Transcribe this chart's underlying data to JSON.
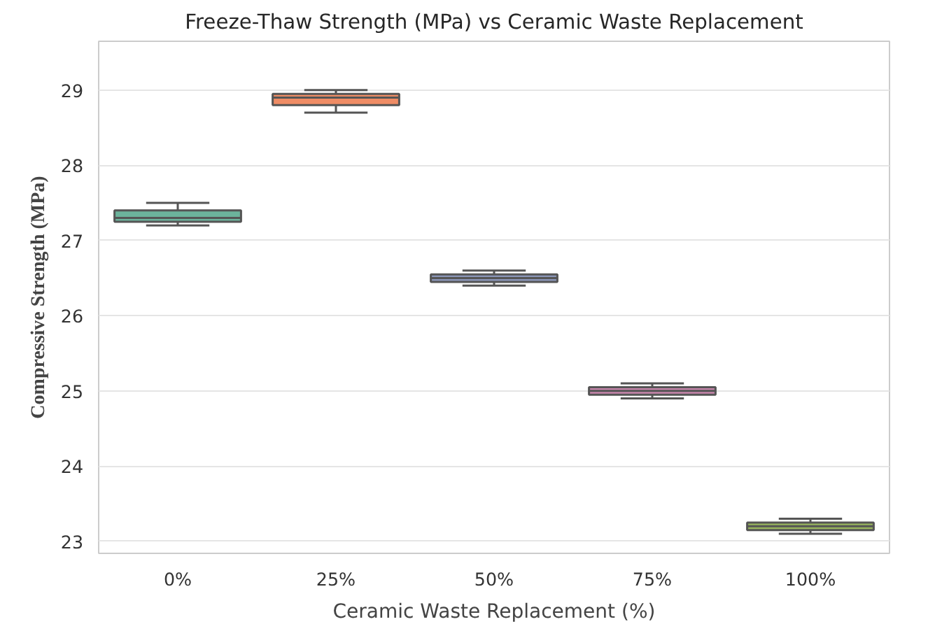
{
  "chart_data": {
    "type": "box",
    "title": "Freeze-Thaw Strength (MPa) vs Ceramic Waste Replacement",
    "xlabel": "Ceramic Waste Replacement (%)",
    "ylabel": "Compressive Strength (MPa)",
    "categories": [
      "0%",
      "25%",
      "50%",
      "75%",
      "100%"
    ],
    "colors": [
      "#6cb39c",
      "#ef8c65",
      "#8b96b8",
      "#c986ad",
      "#98b55e"
    ],
    "boxes": [
      {
        "low": 27.2,
        "q1": 27.25,
        "median": 27.3,
        "q3": 27.4,
        "high": 27.5
      },
      {
        "low": 28.7,
        "q1": 28.8,
        "median": 28.9,
        "q3": 28.95,
        "high": 29.0
      },
      {
        "low": 26.4,
        "q1": 26.45,
        "median": 26.5,
        "q3": 26.55,
        "high": 26.6
      },
      {
        "low": 24.9,
        "q1": 24.95,
        "median": 25.0,
        "q3": 25.05,
        "high": 25.1
      },
      {
        "low": 23.1,
        "q1": 23.15,
        "median": 23.2,
        "q3": 23.25,
        "high": 23.3
      }
    ],
    "ylim": [
      22.84,
      29.65
    ],
    "yticks": [
      23,
      24,
      25,
      26,
      27,
      28,
      29
    ],
    "grid": "y"
  }
}
